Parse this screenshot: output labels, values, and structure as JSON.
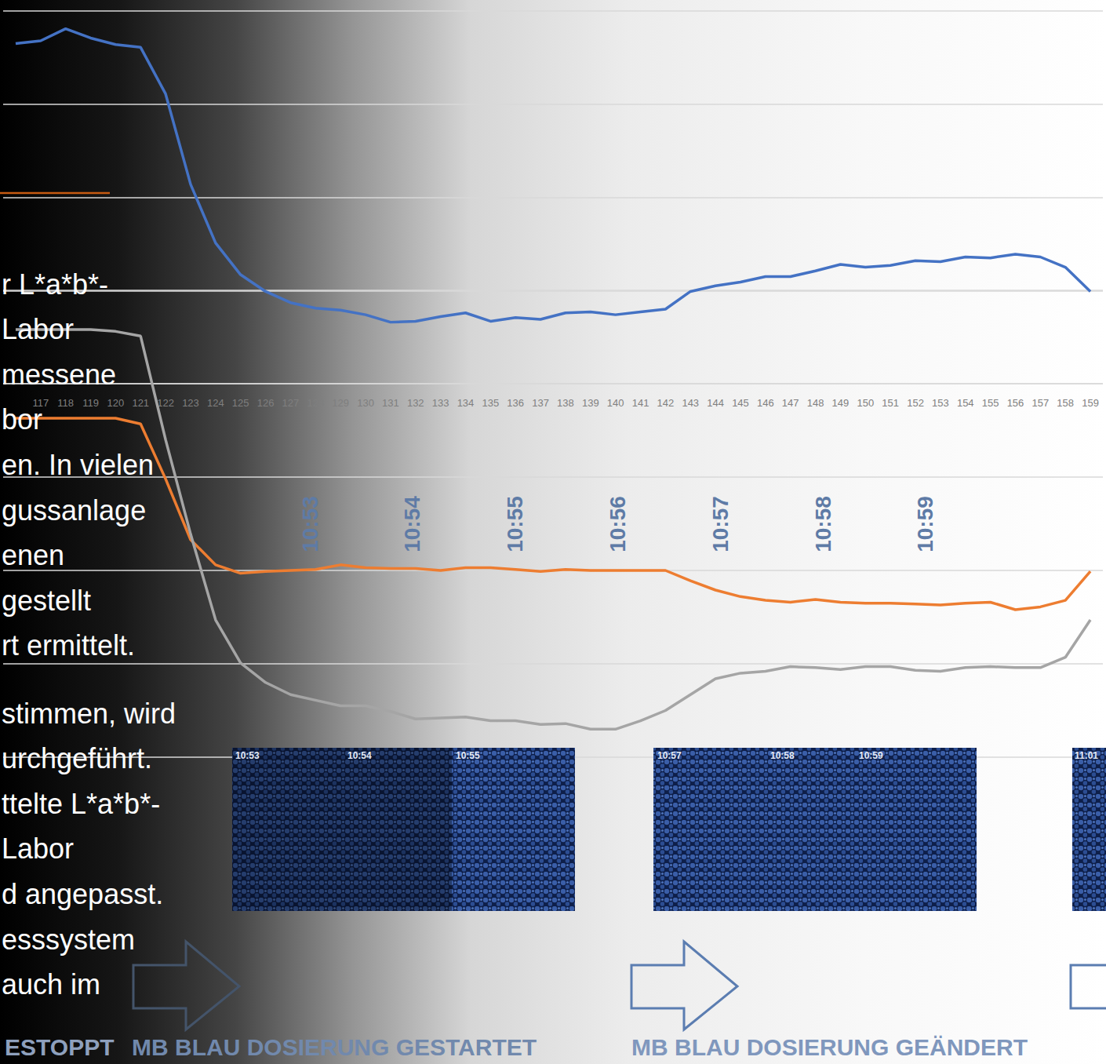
{
  "chart_data": [
    {
      "type": "line",
      "categories": [
        null,
        117,
        118,
        119,
        120,
        121,
        122,
        123,
        124,
        125,
        126,
        127,
        128,
        129,
        130,
        131,
        132,
        133,
        134,
        135,
        136,
        137,
        138,
        139,
        140,
        141,
        142,
        143,
        144,
        145,
        146,
        147,
        148,
        149,
        150,
        151,
        152,
        153,
        154,
        155,
        156,
        157,
        158,
        159
      ],
      "series": [
        {
          "color": "#4472c4",
          "values": [
            3.65,
            3.68,
            3.81,
            3.71,
            3.64,
            3.61,
            3.11,
            2.14,
            1.51,
            1.17,
            0.99,
            0.87,
            0.81,
            0.79,
            0.74,
            0.66,
            0.67,
            0.72,
            0.76,
            0.67,
            0.71,
            0.69,
            0.76,
            0.77,
            0.74,
            0.77,
            0.8,
            0.99,
            1.05,
            1.09,
            1.15,
            1.15,
            1.21,
            1.28,
            1.25,
            1.27,
            1.32,
            1.31,
            1.36,
            1.35,
            1.39,
            1.36,
            1.25,
            0.99
          ]
        }
      ],
      "ylim": [
        0,
        4
      ],
      "yticks": [
        0,
        1,
        2,
        3,
        4
      ],
      "grid": true,
      "tick_labels": "x"
    },
    {
      "type": "line",
      "categories": [
        null,
        117,
        118,
        119,
        120,
        121,
        122,
        123,
        124,
        125,
        126,
        127,
        128,
        129,
        130,
        131,
        132,
        133,
        134,
        135,
        136,
        137,
        138,
        139,
        140,
        141,
        142,
        143,
        144,
        145,
        146,
        147,
        148,
        149,
        150,
        151,
        152,
        153,
        154,
        155,
        156,
        157,
        158,
        159
      ],
      "series": [
        {
          "color": "#ed7d31",
          "values": [
            3.63,
            3.63,
            3.63,
            3.63,
            3.63,
            3.57,
            2.98,
            2.33,
            2.06,
            1.97,
            1.99,
            2.0,
            2.01,
            2.06,
            2.03,
            2.02,
            2.02,
            2.0,
            2.03,
            2.03,
            2.01,
            1.99,
            2.01,
            2.0,
            2.0,
            2.0,
            2.0,
            1.89,
            1.79,
            1.72,
            1.68,
            1.66,
            1.69,
            1.66,
            1.65,
            1.65,
            1.64,
            1.63,
            1.65,
            1.66,
            1.58,
            1.61,
            1.68,
            1.99
          ]
        },
        {
          "color": "#a5a5a5",
          "values": [
            4.58,
            4.58,
            4.58,
            4.58,
            4.56,
            4.51,
            3.4,
            2.39,
            1.47,
            1.01,
            0.8,
            0.67,
            0.61,
            0.55,
            0.55,
            0.49,
            0.41,
            0.42,
            0.43,
            0.39,
            0.39,
            0.35,
            0.36,
            0.3,
            0.3,
            0.39,
            0.5,
            0.67,
            0.84,
            0.9,
            0.92,
            0.97,
            0.96,
            0.94,
            0.97,
            0.97,
            0.93,
            0.92,
            0.96,
            0.97,
            0.96,
            0.96,
            1.07,
            1.47
          ]
        }
      ],
      "ylim": [
        0,
        5
      ],
      "yticks": [
        0,
        1,
        2,
        3,
        4,
        5
      ],
      "grid": true,
      "tick_labels": false
    }
  ],
  "slide": {
    "text_lines": [
      "r L*a*b*-",
      "Labor",
      "messene",
      "bor",
      "en. In vielen",
      "gussanlage",
      "enen",
      "gestellt",
      "rt ermittelt.",
      "stimmen, wird",
      "urchgeführt.",
      "ttelte L*a*b*-",
      "Labor",
      "d angepasst.",
      "esssystem",
      "auch im"
    ],
    "time_labels": [
      "10:53",
      "10:54",
      "10:55",
      "10:56",
      "10:57",
      "10:58",
      "10:59"
    ],
    "photos": [
      {
        "labels": [
          "10:53",
          "10:54",
          "10:55"
        ]
      },
      {
        "labels": [
          "10:57",
          "10:58",
          "10:59"
        ]
      },
      {
        "labels": [
          "11:01"
        ]
      }
    ],
    "captions": [
      "ESTOPPT",
      "MB BLAU DOSIERUNG GESTARTET",
      "MB BLAU DOSIERUNG GEÄNDERT"
    ]
  }
}
